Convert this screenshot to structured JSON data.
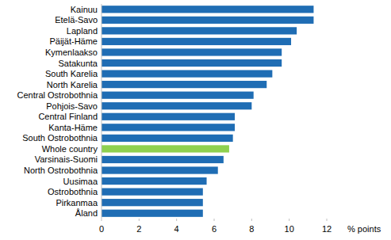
{
  "chart_data": {
    "type": "bar",
    "orientation": "horizontal",
    "xlabel": "% points",
    "categories": [
      "Kainuu",
      "Etelä-Savo",
      "Lapland",
      "Päijät-Häme",
      "Kymenlaakso",
      "Satakunta",
      "South Karelia",
      "North Karelia",
      "Central Ostrobothnia",
      "Pohjois-Savo",
      "Central Finland",
      "Kanta-Häme",
      "South Ostrobothnia",
      "Whole country",
      "Varsinais-Suomi",
      "North Ostrobothnia",
      "Uusimaa",
      "Ostrobothnia",
      "Pirkanmaa",
      "Åland"
    ],
    "values": [
      11.3,
      11.3,
      10.4,
      10.1,
      9.6,
      9.6,
      9.1,
      8.8,
      8.1,
      8.0,
      7.1,
      7.1,
      7.0,
      6.8,
      6.5,
      6.2,
      5.6,
      5.4,
      5.4,
      5.4
    ],
    "colors": [
      "#1f6db4",
      "#1f6db4",
      "#1f6db4",
      "#1f6db4",
      "#1f6db4",
      "#1f6db4",
      "#1f6db4",
      "#1f6db4",
      "#1f6db4",
      "#1f6db4",
      "#1f6db4",
      "#1f6db4",
      "#1f6db4",
      "#8fd14f",
      "#1f6db4",
      "#1f6db4",
      "#1f6db4",
      "#1f6db4",
      "#1f6db4",
      "#1f6db4"
    ],
    "xlim": [
      0,
      12
    ],
    "xticks": [
      0,
      2,
      4,
      6,
      8,
      10,
      12
    ],
    "grid": false
  }
}
